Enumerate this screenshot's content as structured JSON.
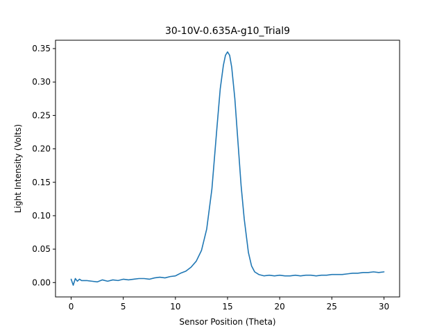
{
  "chart_data": {
    "type": "line",
    "title": "30-10V-0.635A-g10_Trial9",
    "xlabel": "Sensor Position (Theta)",
    "ylabel": "Light Intensity (Volts)",
    "xlim": [
      -1.5,
      31.5
    ],
    "ylim": [
      -0.0215,
      0.3625
    ],
    "grid": false,
    "x_ticks": [
      0,
      5,
      10,
      15,
      20,
      25,
      30
    ],
    "x_tick_labels": [
      "0",
      "5",
      "10",
      "15",
      "20",
      "25",
      "30"
    ],
    "y_ticks": [
      0.0,
      0.05,
      0.1,
      0.15,
      0.2,
      0.25,
      0.3,
      0.35
    ],
    "y_tick_labels": [
      "0.00",
      "0.05",
      "0.10",
      "0.15",
      "0.20",
      "0.25",
      "0.30",
      "0.35"
    ],
    "series": [
      {
        "color": "#1f77b4",
        "x": [
          0.0,
          0.2,
          0.4,
          0.6,
          0.8,
          1.0,
          1.5,
          2.0,
          2.5,
          3.0,
          3.5,
          4.0,
          4.5,
          5.0,
          5.5,
          6.0,
          6.5,
          7.0,
          7.5,
          8.0,
          8.5,
          9.0,
          9.5,
          10.0,
          10.5,
          11.0,
          11.5,
          12.0,
          12.5,
          13.0,
          13.5,
          14.0,
          14.3,
          14.6,
          14.8,
          15.0,
          15.2,
          15.4,
          15.7,
          16.0,
          16.3,
          16.6,
          17.0,
          17.3,
          17.6,
          18.0,
          18.5,
          19.0,
          19.5,
          20.0,
          20.5,
          21.0,
          21.5,
          22.0,
          22.5,
          23.0,
          23.5,
          24.0,
          24.5,
          25.0,
          25.5,
          26.0,
          26.5,
          27.0,
          27.5,
          28.0,
          28.5,
          29.0,
          29.5,
          30.0
        ],
        "y": [
          0.005,
          -0.004,
          0.006,
          0.002,
          0.005,
          0.003,
          0.003,
          0.002,
          0.001,
          0.004,
          0.002,
          0.004,
          0.003,
          0.005,
          0.004,
          0.005,
          0.006,
          0.006,
          0.005,
          0.007,
          0.008,
          0.007,
          0.009,
          0.01,
          0.014,
          0.017,
          0.023,
          0.032,
          0.048,
          0.08,
          0.14,
          0.235,
          0.29,
          0.325,
          0.34,
          0.345,
          0.34,
          0.322,
          0.275,
          0.21,
          0.145,
          0.095,
          0.045,
          0.025,
          0.016,
          0.012,
          0.01,
          0.011,
          0.01,
          0.011,
          0.01,
          0.01,
          0.011,
          0.01,
          0.011,
          0.011,
          0.01,
          0.011,
          0.011,
          0.012,
          0.012,
          0.012,
          0.013,
          0.014,
          0.014,
          0.015,
          0.015,
          0.016,
          0.015,
          0.016
        ]
      }
    ]
  }
}
